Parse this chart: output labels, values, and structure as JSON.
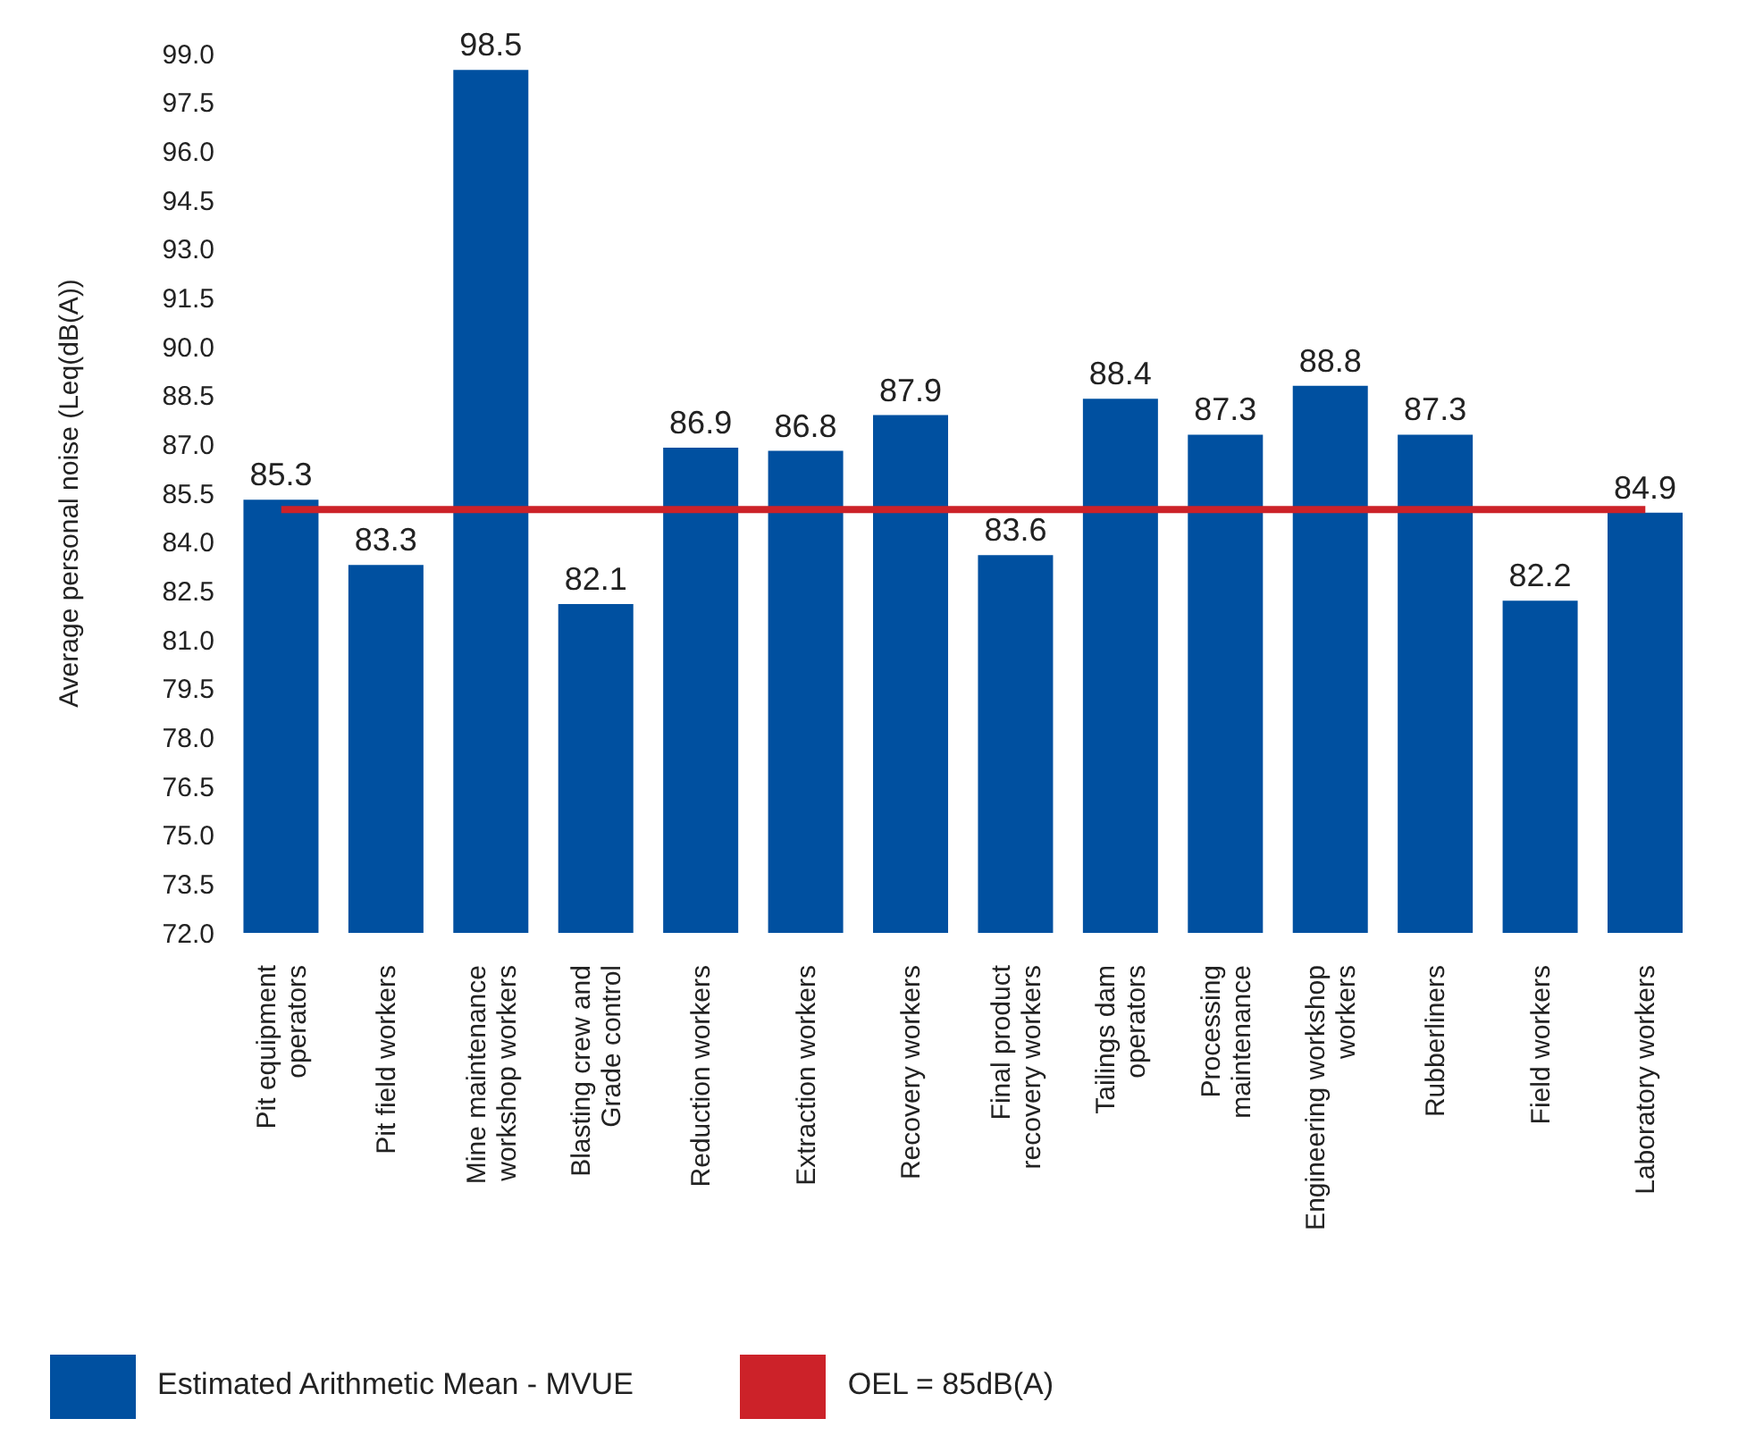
{
  "chart_data": {
    "type": "bar",
    "ylabel": "Average personal noise (Leq(dB(A))",
    "categories": [
      "Pit equipment operators",
      "Pit field workers",
      "Mine maintenance workshop workers",
      "Blasting crew and Grade control",
      "Reduction workers",
      "Extraction workers",
      "Recovery workers",
      "Final product recovery workers",
      "Tailings dam operators",
      "Processing maintenance",
      "Engineering workshop workers",
      "Rubberliners",
      "Field workers",
      "Laboratory workers"
    ],
    "series": [
      {
        "name": "Estimated Arithmetic Mean - MVUE",
        "color": "#0050a0",
        "values": [
          85.3,
          83.3,
          98.5,
          82.1,
          86.9,
          86.8,
          87.9,
          83.6,
          88.4,
          87.3,
          88.8,
          87.3,
          82.2,
          84.9
        ],
        "value_labels": [
          "85.3",
          "83.3",
          "98.5",
          "82.1",
          "86.9",
          "86.8",
          "87.9",
          "83.6",
          "88.4",
          "87.3",
          "88.8",
          "87.3",
          "82.2",
          "84.9"
        ]
      },
      {
        "name": "OEL = 85dB(A)",
        "type": "line",
        "color": "#cc2229",
        "values": [
          85,
          85,
          85,
          85,
          85,
          85,
          85,
          85,
          85,
          85,
          85,
          85,
          85,
          85
        ]
      }
    ],
    "ylim": [
      72,
      99
    ],
    "yticks": [
      {
        "value": 72,
        "label": "72.0"
      },
      {
        "value": 73.5,
        "label": "73.5"
      },
      {
        "value": 75,
        "label": "75.0"
      },
      {
        "value": 76.5,
        "label": "76.5"
      },
      {
        "value": 78,
        "label": "78.0"
      },
      {
        "value": 79.5,
        "label": "79.5"
      },
      {
        "value": 81,
        "label": "81.0"
      },
      {
        "value": 82.5,
        "label": "82.5"
      },
      {
        "value": 84,
        "label": "84.0"
      },
      {
        "value": 85.5,
        "label": "85.5"
      },
      {
        "value": 87,
        "label": "87.0"
      },
      {
        "value": 88.5,
        "label": "88.5"
      },
      {
        "value": 90,
        "label": "90.0"
      },
      {
        "value": 91.5,
        "label": "91.5"
      },
      {
        "value": 93,
        "label": "93.0"
      },
      {
        "value": 94.5,
        "label": "94.5"
      },
      {
        "value": 96,
        "label": "96.0"
      },
      {
        "value": 97.5,
        "label": "97.5"
      },
      {
        "value": 99,
        "label": "99.0"
      }
    ],
    "legend": "bottom left"
  }
}
